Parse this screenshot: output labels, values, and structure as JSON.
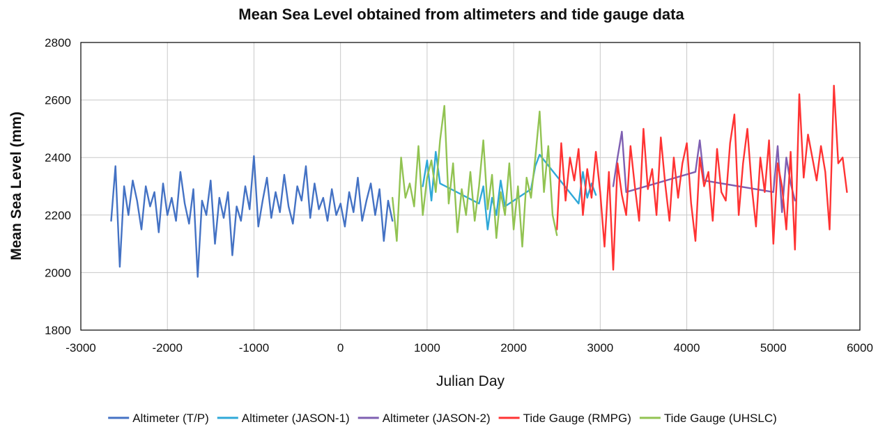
{
  "chart_data": {
    "type": "line",
    "title": "Mean Sea Level obtained from altimeters and tide gauge data",
    "xlabel": "Julian Day",
    "ylabel": "Mean Sea Level (mm)",
    "xlim": [
      -3000,
      6000
    ],
    "ylim": [
      1800,
      2800
    ],
    "xticks": [
      -3000,
      -2000,
      -1000,
      0,
      1000,
      2000,
      3000,
      4000,
      5000,
      6000
    ],
    "yticks": [
      1800,
      2000,
      2200,
      2400,
      2600,
      2800
    ],
    "grid": true,
    "legend": "bottom",
    "series": [
      {
        "name": "Altimeter (T/P)",
        "color": "#4472c4",
        "x": [
          -2650,
          -2600,
          -2550,
          -2500,
          -2450,
          -2400,
          -2350,
          -2300,
          -2250,
          -2200,
          -2150,
          -2100,
          -2050,
          -2000,
          -1950,
          -1900,
          -1850,
          -1800,
          -1750,
          -1700,
          -1650,
          -1600,
          -1550,
          -1500,
          -1450,
          -1400,
          -1350,
          -1300,
          -1250,
          -1200,
          -1150,
          -1100,
          -1050,
          -1000,
          -950,
          -900,
          -850,
          -800,
          -750,
          -700,
          -650,
          -600,
          -550,
          -500,
          -450,
          -400,
          -350,
          -300,
          -250,
          -200,
          -150,
          -100,
          -50,
          0,
          50,
          100,
          150,
          200,
          250,
          300,
          350,
          400,
          450,
          500,
          550,
          600
        ],
        "y": [
          2180,
          2370,
          2020,
          2300,
          2200,
          2320,
          2250,
          2150,
          2300,
          2230,
          2280,
          2140,
          2310,
          2200,
          2260,
          2180,
          2350,
          2240,
          2170,
          2290,
          1985,
          2250,
          2200,
          2320,
          2100,
          2260,
          2190,
          2280,
          2060,
          2230,
          2180,
          2300,
          2220,
          2405,
          2160,
          2250,
          2330,
          2190,
          2280,
          2210,
          2340,
          2230,
          2170,
          2300,
          2250,
          2370,
          2190,
          2310,
          2220,
          2260,
          2180,
          2290,
          2200,
          2240,
          2160,
          2280,
          2210,
          2330,
          2180,
          2250,
          2310,
          2200,
          2290,
          2110,
          2250,
          2180
        ]
      },
      {
        "name": "Altimeter (JASON-1)",
        "color": "#2fa8d8",
        "x": [
          950,
          1000,
          1050,
          1100,
          1150,
          1600,
          1650,
          1700,
          1750,
          1800,
          1850,
          1900,
          2200,
          2250,
          2300,
          2750,
          2800,
          2850,
          2900,
          2950
        ],
        "y": [
          2300,
          2390,
          2250,
          2420,
          2310,
          2240,
          2300,
          2150,
          2260,
          2200,
          2320,
          2230,
          2290,
          2370,
          2410,
          2240,
          2350,
          2260,
          2310,
          2270
        ]
      },
      {
        "name": "Altimeter (JASON-2)",
        "color": "#7e5fb2",
        "x": [
          3150,
          3200,
          3250,
          3300,
          4100,
          4150,
          4200,
          5000,
          5050,
          5100,
          5150,
          5200,
          5250
        ],
        "y": [
          2300,
          2400,
          2490,
          2280,
          2350,
          2460,
          2320,
          2280,
          2440,
          2210,
          2400,
          2310,
          2250
        ]
      },
      {
        "name": "Tide Gauge (RMPG)",
        "color": "#ff3333",
        "x": [
          2500,
          2550,
          2600,
          2650,
          2700,
          2750,
          2800,
          2850,
          2900,
          2950,
          3000,
          3050,
          3100,
          3150,
          3200,
          3250,
          3300,
          3350,
          3400,
          3450,
          3500,
          3550,
          3600,
          3650,
          3700,
          3750,
          3800,
          3850,
          3900,
          3950,
          4000,
          4050,
          4100,
          4150,
          4200,
          4250,
          4300,
          4350,
          4400,
          4450,
          4500,
          4550,
          4600,
          4650,
          4700,
          4750,
          4800,
          4850,
          4900,
          4950,
          5000,
          5050,
          5100,
          5150,
          5200,
          5250,
          5300,
          5350,
          5400,
          5450,
          5500,
          5550,
          5600,
          5650,
          5700,
          5750,
          5800,
          5850
        ],
        "y": [
          2150,
          2450,
          2250,
          2400,
          2320,
          2430,
          2200,
          2360,
          2260,
          2420,
          2280,
          2090,
          2350,
          2010,
          2380,
          2270,
          2200,
          2440,
          2300,
          2180,
          2500,
          2290,
          2360,
          2200,
          2470,
          2310,
          2180,
          2400,
          2260,
          2380,
          2450,
          2240,
          2110,
          2400,
          2300,
          2350,
          2180,
          2430,
          2280,
          2250,
          2450,
          2550,
          2200,
          2380,
          2500,
          2300,
          2160,
          2400,
          2280,
          2460,
          2100,
          2380,
          2300,
          2150,
          2420,
          2080,
          2620,
          2330,
          2480,
          2400,
          2320,
          2440,
          2350,
          2150,
          2650,
          2380,
          2400,
          2280
        ]
      },
      {
        "name": "Tide Gauge (UHSLC)",
        "color": "#92c352",
        "x": [
          600,
          650,
          700,
          750,
          800,
          850,
          900,
          950,
          1000,
          1050,
          1100,
          1150,
          1200,
          1250,
          1300,
          1350,
          1400,
          1450,
          1500,
          1550,
          1600,
          1650,
          1700,
          1750,
          1800,
          1850,
          1900,
          1950,
          2000,
          2050,
          2100,
          2150,
          2200,
          2250,
          2300,
          2350,
          2400,
          2450,
          2500
        ],
        "y": [
          2260,
          2110,
          2400,
          2260,
          2310,
          2230,
          2440,
          2200,
          2330,
          2390,
          2280,
          2460,
          2580,
          2240,
          2380,
          2140,
          2290,
          2200,
          2350,
          2180,
          2300,
          2460,
          2220,
          2340,
          2120,
          2280,
          2200,
          2380,
          2150,
          2300,
          2090,
          2330,
          2260,
          2400,
          2560,
          2280,
          2440,
          2200,
          2130
        ]
      }
    ]
  }
}
